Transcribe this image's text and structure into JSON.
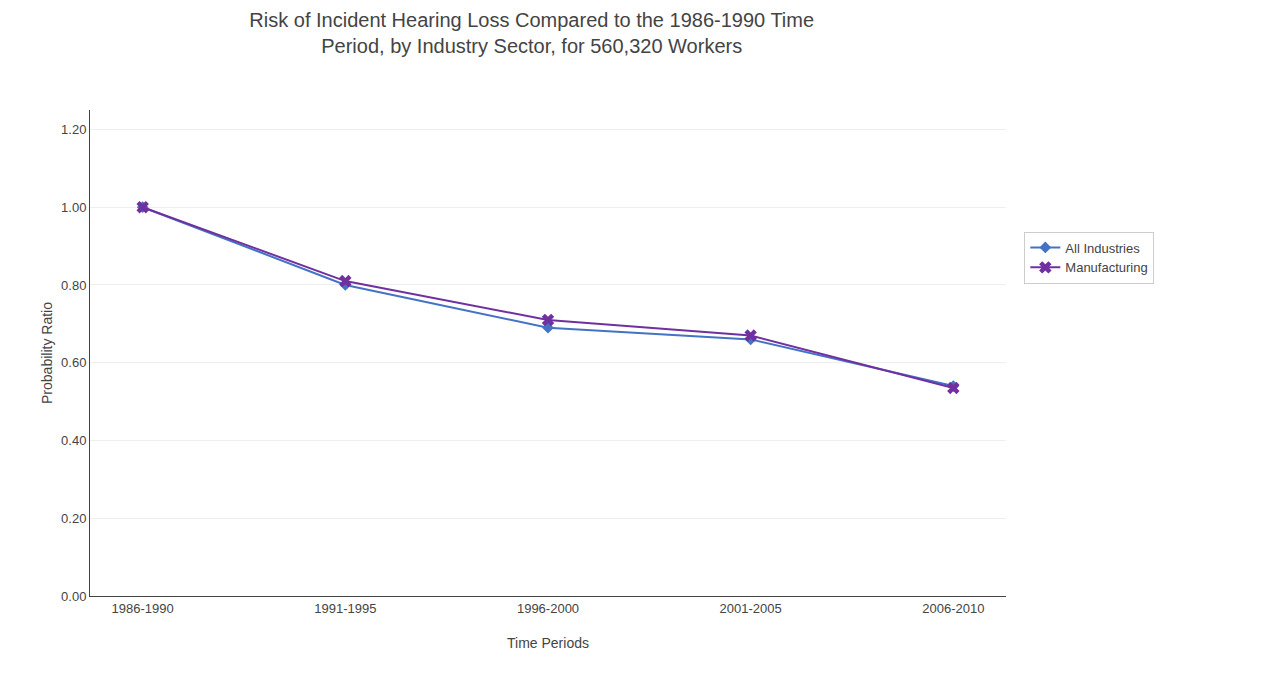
{
  "chart_data": {
    "type": "line",
    "title": "Risk of Incident Hearing Loss Compared to the 1986-1990 Time\nPeriod, by Industry Sector, for 560,320 Workers",
    "x_label": "Time Periods",
    "y_label": "Probability Ratio",
    "categories": [
      "1986-1990",
      "1991-1995",
      "1996-2000",
      "2001-2005",
      "2006-2010"
    ],
    "series": [
      {
        "name": "All Industries",
        "color": "#4472C4",
        "marker": "diamond",
        "values": [
          1.0,
          0.8,
          0.69,
          0.66,
          0.54
        ]
      },
      {
        "name": "Manufacturing",
        "color": "#7030A0",
        "marker": "x",
        "values": [
          1.0,
          0.81,
          0.71,
          0.67,
          0.535
        ]
      }
    ],
    "ylim": [
      0.0,
      1.25
    ],
    "yticks": [
      {
        "value": 0.0,
        "label": "0.00"
      },
      {
        "value": 0.2,
        "label": "0.20"
      },
      {
        "value": 0.4,
        "label": "0.40"
      },
      {
        "value": 0.6,
        "label": "0.60"
      },
      {
        "value": 0.8,
        "label": "0.80"
      },
      {
        "value": 1.0,
        "label": "1.00"
      },
      {
        "value": 1.2,
        "label": "1.20"
      }
    ],
    "grid": true,
    "legend": "right"
  }
}
